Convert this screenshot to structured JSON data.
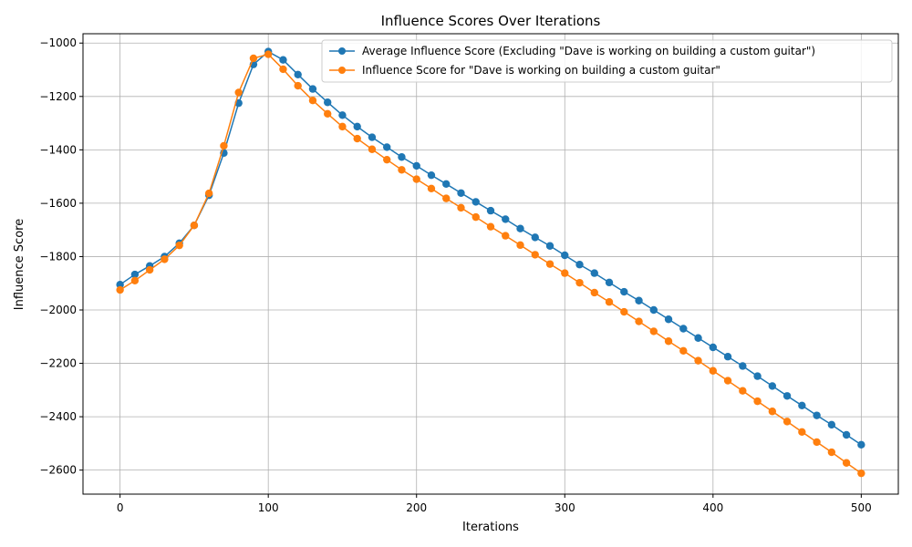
{
  "chart_data": {
    "type": "line",
    "title": "Influence Scores Over Iterations",
    "xlabel": "Iterations",
    "ylabel": "Influence Score",
    "xlim": [
      -25,
      525
    ],
    "ylim": [
      -2690,
      -965
    ],
    "xticks": [
      0,
      100,
      200,
      300,
      400,
      500
    ],
    "yticks": [
      -1000,
      -1200,
      -1400,
      -1600,
      -1800,
      -2000,
      -2200,
      -2400,
      -2600
    ],
    "grid": true,
    "legend_position": "top-right",
    "x": [
      0,
      10,
      20,
      30,
      40,
      50,
      60,
      70,
      80,
      90,
      100,
      110,
      120,
      130,
      140,
      150,
      160,
      170,
      180,
      190,
      200,
      210,
      220,
      230,
      240,
      250,
      260,
      270,
      280,
      290,
      300,
      310,
      320,
      330,
      340,
      350,
      360,
      370,
      380,
      390,
      400,
      410,
      420,
      430,
      440,
      450,
      460,
      470,
      480,
      490,
      500
    ],
    "series": [
      {
        "name": "Average Influence Score (Excluding \"Dave is working on building a custom guitar\")",
        "color": "#1f77b4",
        "values": [
          -1905,
          -1867,
          -1835,
          -1800,
          -1750,
          -1683,
          -1570,
          -1412,
          -1225,
          -1080,
          -1032,
          -1063,
          -1118,
          -1172,
          -1222,
          -1270,
          -1313,
          -1353,
          -1390,
          -1427,
          -1460,
          -1495,
          -1528,
          -1562,
          -1595,
          -1628,
          -1660,
          -1695,
          -1728,
          -1760,
          -1795,
          -1830,
          -1862,
          -1897,
          -1932,
          -1965,
          -2000,
          -2035,
          -2070,
          -2105,
          -2140,
          -2175,
          -2210,
          -2248,
          -2285,
          -2322,
          -2358,
          -2395,
          -2430,
          -2468,
          -2505
        ]
      },
      {
        "name": "Influence Score for \"Dave is working on building a custom guitar\"",
        "color": "#ff7f0e",
        "values": [
          -1925,
          -1890,
          -1850,
          -1810,
          -1758,
          -1683,
          -1563,
          -1385,
          -1185,
          -1057,
          -1042,
          -1098,
          -1160,
          -1215,
          -1265,
          -1313,
          -1358,
          -1398,
          -1437,
          -1475,
          -1510,
          -1545,
          -1582,
          -1617,
          -1652,
          -1688,
          -1722,
          -1757,
          -1793,
          -1828,
          -1862,
          -1898,
          -1935,
          -1970,
          -2007,
          -2043,
          -2080,
          -2117,
          -2153,
          -2190,
          -2228,
          -2265,
          -2303,
          -2342,
          -2380,
          -2418,
          -2457,
          -2495,
          -2533,
          -2573,
          -2612
        ]
      }
    ]
  }
}
